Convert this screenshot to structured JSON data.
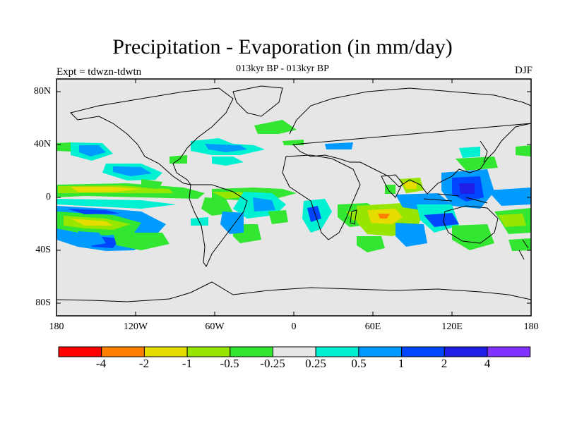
{
  "figure": {
    "title": "Precipitation - Evaporation (in mm/day)",
    "subtitle": "013kyr BP - 013kyr BP",
    "left_label": "Expt = tdwzn-tdwtn",
    "right_label": "DJF"
  },
  "axes": {
    "y_ticks": [
      "80N",
      "40N",
      "0",
      "40S",
      "80S"
    ],
    "x_ticks": [
      "180",
      "120W",
      "60W",
      "0",
      "60E",
      "120E",
      "180"
    ]
  },
  "colorbar": {
    "colors": [
      "#ff0000",
      "#ff7f00",
      "#e6dc00",
      "#96e600",
      "#32e632",
      "#e6e6e6",
      "#00f0d2",
      "#009bff",
      "#0046ff",
      "#1e1ee6",
      "#8232ff"
    ],
    "labels": [
      "-4",
      "-2",
      "-1",
      "-0.5",
      "-0.25",
      "0.25",
      "0.5",
      "1",
      "2",
      "4"
    ]
  },
  "map": {
    "background_color": "#e6e6e6",
    "coastline_color": "#000000"
  }
}
